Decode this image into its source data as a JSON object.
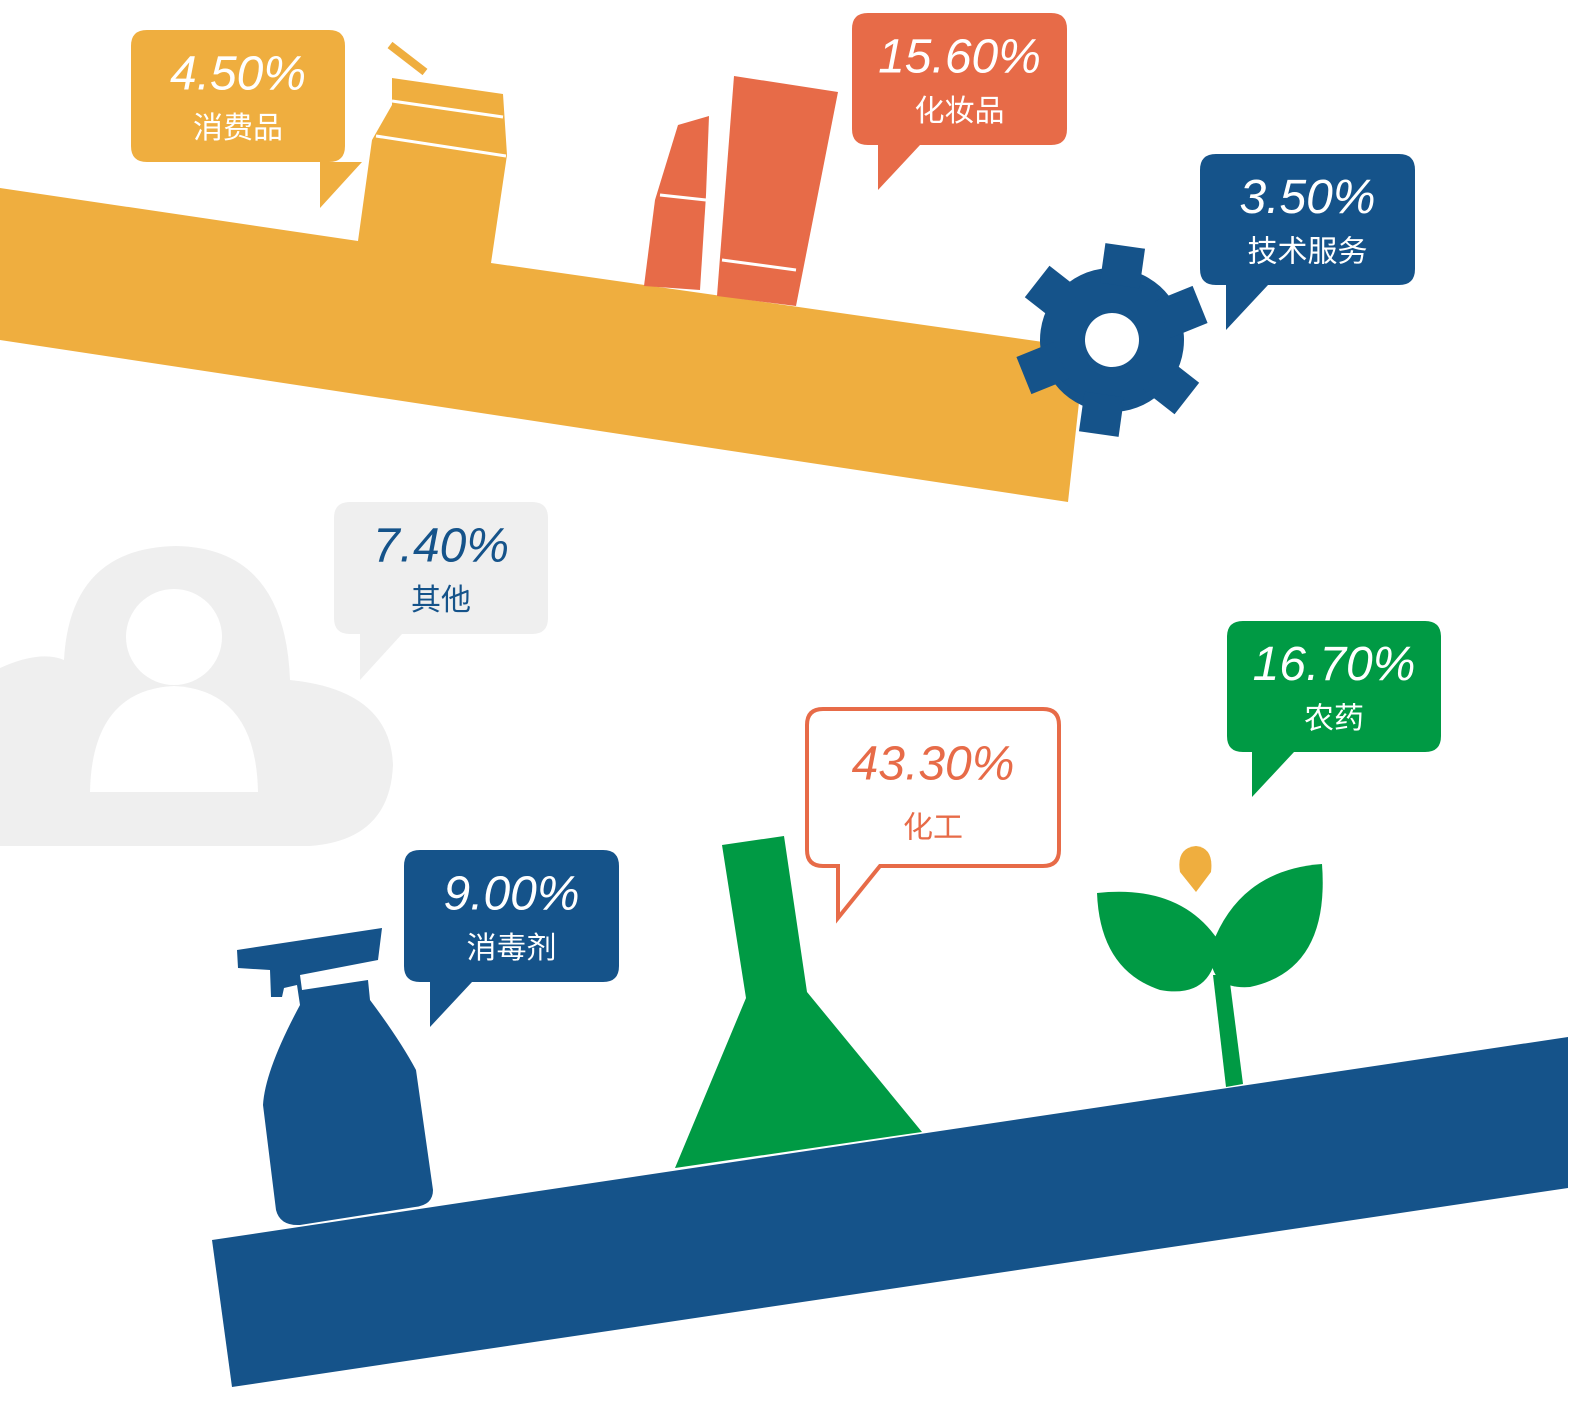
{
  "items": [
    {
      "value": "4.50%",
      "label": "消费品"
    },
    {
      "value": "15.60%",
      "label": "化妆品"
    },
    {
      "value": "3.50%",
      "label": "技术服务"
    },
    {
      "value": "7.40%",
      "label": "其他"
    },
    {
      "value": "9.00%",
      "label": "消毒剂"
    },
    {
      "value": "43.30%",
      "label": "化工"
    },
    {
      "value": "16.70%",
      "label": "农药"
    }
  ]
}
